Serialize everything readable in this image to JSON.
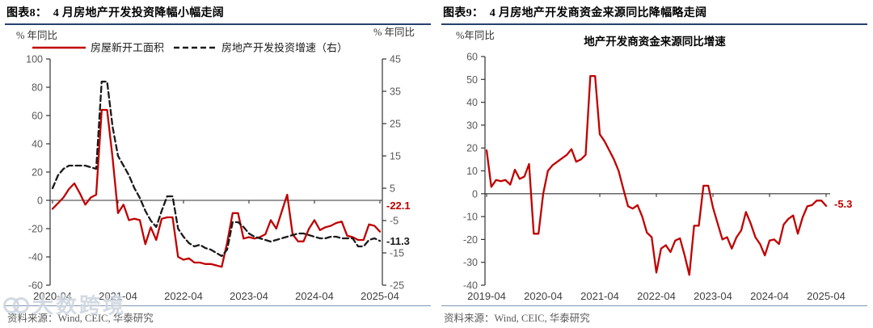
{
  "watermark": {
    "text": "大数跨境"
  },
  "figures": [
    {
      "title": "图表8：  4 月房地产开发投资降幅小幅走阔",
      "source": "资料来源：Wind, CEIC, 华泰研究",
      "chart_data": {
        "type": "line",
        "x_start": "2020-04",
        "x_interval": "month",
        "x_tick_labels": [
          "2020-04",
          "2021-04",
          "2022-04",
          "2023-04",
          "2024-04",
          "2025-04"
        ],
        "left_axis_label": "% 年同比",
        "right_axis_label": "% 年同比",
        "left_axis": {
          "min": -60,
          "max": 100,
          "ticks": [
            100,
            80,
            60,
            40,
            20,
            0,
            -20,
            -40,
            -60
          ]
        },
        "right_axis": {
          "min": -25,
          "max": 45,
          "ticks": [
            45,
            35,
            25,
            15,
            5,
            -5,
            -15,
            -25
          ]
        },
        "grid": false,
        "legend_position": "top",
        "series": [
          {
            "name": "房屋新开工面积",
            "axis": "left",
            "color": "#c00000",
            "line_style": "solid",
            "end_label": "-22.1",
            "values": [
              -6,
              -2,
              2,
              8,
              12,
              5,
              -3,
              2,
              4,
              64,
              64,
              30,
              -9,
              -3,
              -14,
              -13,
              -14,
              -31,
              -19,
              -28,
              -13,
              -12,
              -12,
              -40,
              -42,
              -41,
              -44,
              -44,
              -45,
              -45,
              -46,
              -47,
              -30,
              -9,
              -9,
              -27,
              -26,
              -27,
              -26,
              -24,
              -14,
              -20,
              -8,
              4,
              -24,
              -29,
              -29,
              -20,
              -14,
              -21,
              -19,
              -18,
              -16,
              -15,
              -25,
              -26,
              -28,
              -28,
              -17,
              -18,
              -22.1
            ]
          },
          {
            "name": "房地产开发投资增速（右）",
            "axis": "right",
            "color": "#1a1a1a",
            "line_style": "dashed",
            "end_label": "-11.3",
            "values": [
              5,
              9,
              11,
              12,
              12,
              12,
              12,
              11.5,
              11,
              38,
              38,
              24,
              15,
              12,
              9,
              5,
              2,
              -2,
              -5,
              -7,
              -2,
              2.5,
              2.5,
              -7.5,
              -10,
              -12,
              -13,
              -12.5,
              -13.5,
              -14,
              -15,
              -16,
              -14,
              -5.5,
              -5.5,
              -7,
              -9,
              -10,
              -10.5,
              -11,
              -11.5,
              -11,
              -10.5,
              -10,
              -9.5,
              -9,
              -9,
              -9.5,
              -10,
              -10.5,
              -10.5,
              -10,
              -10,
              -10.5,
              -10.5,
              -10.5,
              -13,
              -13,
              -11,
              -10.5,
              -11.3
            ]
          }
        ]
      }
    },
    {
      "title": "图表9：  4 月房地产开发商资金来源同比降幅略走阔",
      "inner_title": "地产开发商资金来源同比增速",
      "source": "资料来源：Wind, CEIC, 华泰研究",
      "chart_data": {
        "type": "line",
        "x_start": "2019-04",
        "x_interval": "month",
        "x_tick_labels": [
          "2019-04",
          "2020-04",
          "2021-04",
          "2022-04",
          "2023-04",
          "2024-04",
          "2025-04"
        ],
        "y_axis_label": "%年同比",
        "y_axis": {
          "min": -40,
          "max": 60,
          "ticks": [
            60,
            50,
            40,
            30,
            20,
            10,
            0,
            -10,
            -20,
            -30,
            -40
          ]
        },
        "grid": false,
        "series": [
          {
            "name": "地产开发商资金来源同比增速",
            "axis": "left",
            "color": "#c00000",
            "line_style": "solid",
            "end_label": "-5.3",
            "values": [
              19,
              3,
              6,
              5.5,
              6,
              4,
              10.5,
              6.5,
              7.5,
              13,
              -17.5,
              -17.5,
              0,
              10,
              12.5,
              14,
              15.5,
              17,
              19.5,
              14,
              15,
              17,
              51.5,
              51.5,
              26,
              23,
              19,
              15,
              10,
              2,
              -5.5,
              -6.5,
              -5,
              -10,
              -17,
              -19,
              -34.5,
              -24,
              -22.5,
              -25.5,
              -20.5,
              -19.5,
              -27,
              -35.5,
              -14,
              -14,
              3.5,
              3.5,
              -6,
              -13,
              -20,
              -19,
              -24,
              -19,
              -16,
              -8,
              -13,
              -19,
              -22,
              -27,
              -20.5,
              -20,
              -22,
              -13.5,
              -11,
              -9.5,
              -17.5,
              -10.5,
              -5.5,
              -5,
              -3,
              -3,
              -5.3
            ]
          }
        ]
      }
    }
  ]
}
